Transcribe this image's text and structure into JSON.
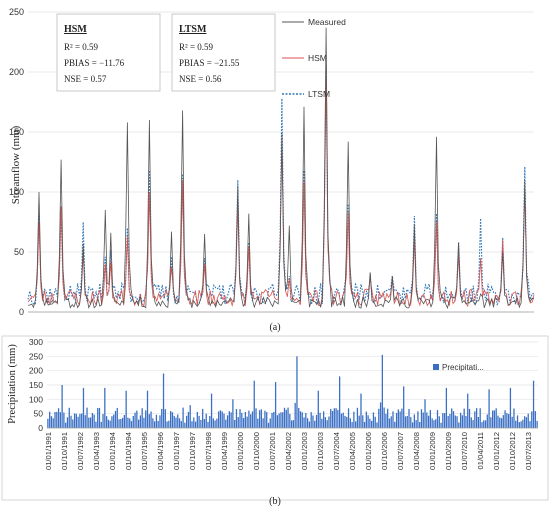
{
  "panel_a": {
    "label": "(a)",
    "stats_boxes": [
      {
        "title": "HSM",
        "lines": [
          "R² = 0.59",
          "PBIAS = −11.76",
          "NSE = 0.57"
        ]
      },
      {
        "title": "LTSM",
        "lines": [
          "R² = 0.59",
          "PBIAS = −21.55",
          "NSE = 0.56"
        ]
      }
    ],
    "colors": {
      "measured": "#555555",
      "hsm": "#d9534f",
      "ltsm": "#2e75b6"
    },
    "chart_data": {
      "type": "line",
      "ylabel": "Streamflow (mm)",
      "xlabel": "",
      "ylim": [
        0,
        250
      ],
      "yticks": [
        0,
        50,
        100,
        150,
        200,
        250
      ],
      "x_start": "1991-01",
      "x_step": "1 month",
      "n_points": 276,
      "legend": {
        "placement": "top-right",
        "entries": [
          "Measured",
          "HSM",
          "LTSM"
        ]
      },
      "series": [
        {
          "name": "Measured",
          "style": "solid",
          "peaks": [
            {
              "i": 6,
              "v": 100
            },
            {
              "i": 18,
              "v": 127
            },
            {
              "i": 30,
              "v": 57
            },
            {
              "i": 42,
              "v": 85
            },
            {
              "i": 45,
              "v": 66
            },
            {
              "i": 54,
              "v": 158
            },
            {
              "i": 66,
              "v": 160
            },
            {
              "i": 78,
              "v": 67
            },
            {
              "i": 84,
              "v": 168
            },
            {
              "i": 96,
              "v": 65
            },
            {
              "i": 114,
              "v": 105
            },
            {
              "i": 120,
              "v": 82
            },
            {
              "i": 138,
              "v": 149
            },
            {
              "i": 142,
              "v": 72
            },
            {
              "i": 150,
              "v": 171
            },
            {
              "i": 162,
              "v": 237
            },
            {
              "i": 174,
              "v": 142
            },
            {
              "i": 186,
              "v": 33
            },
            {
              "i": 198,
              "v": 30
            },
            {
              "i": 210,
              "v": 73
            },
            {
              "i": 222,
              "v": 146
            },
            {
              "i": 234,
              "v": 58
            },
            {
              "i": 246,
              "v": 15
            },
            {
              "i": 258,
              "v": 50
            },
            {
              "i": 270,
              "v": 110
            }
          ]
        },
        {
          "name": "HSM",
          "style": "solid",
          "peaks": [
            {
              "i": 6,
              "v": 75
            },
            {
              "i": 18,
              "v": 88
            },
            {
              "i": 30,
              "v": 50
            },
            {
              "i": 42,
              "v": 40
            },
            {
              "i": 45,
              "v": 42
            },
            {
              "i": 54,
              "v": 63
            },
            {
              "i": 66,
              "v": 100
            },
            {
              "i": 78,
              "v": 38
            },
            {
              "i": 84,
              "v": 110
            },
            {
              "i": 96,
              "v": 40
            },
            {
              "i": 114,
              "v": 88
            },
            {
              "i": 120,
              "v": 55
            },
            {
              "i": 138,
              "v": 145
            },
            {
              "i": 142,
              "v": 28
            },
            {
              "i": 150,
              "v": 108
            },
            {
              "i": 162,
              "v": 197
            },
            {
              "i": 174,
              "v": 83
            },
            {
              "i": 186,
              "v": 28
            },
            {
              "i": 198,
              "v": 26
            },
            {
              "i": 210,
              "v": 60
            },
            {
              "i": 222,
              "v": 75
            },
            {
              "i": 234,
              "v": 48
            },
            {
              "i": 246,
              "v": 45
            },
            {
              "i": 258,
              "v": 60
            },
            {
              "i": 270,
              "v": 102
            }
          ]
        },
        {
          "name": "LTSM",
          "style": "dotted",
          "peaks": [
            {
              "i": 6,
              "v": 82
            },
            {
              "i": 18,
              "v": 85
            },
            {
              "i": 30,
              "v": 75
            },
            {
              "i": 42,
              "v": 46
            },
            {
              "i": 45,
              "v": 52
            },
            {
              "i": 54,
              "v": 70
            },
            {
              "i": 66,
              "v": 118
            },
            {
              "i": 78,
              "v": 46
            },
            {
              "i": 84,
              "v": 115
            },
            {
              "i": 96,
              "v": 45
            },
            {
              "i": 114,
              "v": 110
            },
            {
              "i": 120,
              "v": 58
            },
            {
              "i": 138,
              "v": 178
            },
            {
              "i": 142,
              "v": 30
            },
            {
              "i": 150,
              "v": 118
            },
            {
              "i": 162,
              "v": 205
            },
            {
              "i": 174,
              "v": 90
            },
            {
              "i": 186,
              "v": 32
            },
            {
              "i": 198,
              "v": 30
            },
            {
              "i": 210,
              "v": 80
            },
            {
              "i": 222,
              "v": 82
            },
            {
              "i": 234,
              "v": 58
            },
            {
              "i": 246,
              "v": 78
            },
            {
              "i": 258,
              "v": 62
            },
            {
              "i": 270,
              "v": 121
            }
          ]
        }
      ]
    }
  },
  "panel_b": {
    "label": "(b)",
    "bar_color": "#3a6fc4",
    "chart_data": {
      "type": "bar",
      "ylabel": "Precipitation (mm)",
      "xlabel": "",
      "ylim": [
        0,
        300
      ],
      "yticks": [
        0,
        50,
        100,
        150,
        200,
        250,
        300
      ],
      "x_start": "1991-01",
      "x_step": "1 month",
      "n_points": 276,
      "legend": {
        "placement": "top-right",
        "entries": [
          "Precipitati..."
        ]
      },
      "categories": [
        "01/01/1991",
        "01/10/1991",
        "01/07/1992",
        "01/04/1993",
        "01/01/1994",
        "01/10/1994",
        "01/07/1995",
        "01/04/1996",
        "01/01/1997",
        "01/10/1997",
        "01/07/1998",
        "01/04/1999",
        "01/01/2000",
        "01/10/2000",
        "01/07/2001",
        "01/04/2002",
        "01/01/2003",
        "01/10/2003",
        "01/07/2004",
        "01/04/2005",
        "01/01/2006",
        "01/10/2006",
        "01/07/2007",
        "01/04/2008",
        "01/01/2009",
        "01/10/2009",
        "01/07/2010",
        "01/04/2011",
        "01/01/2012",
        "01/10/2012",
        "01/07/2013"
      ],
      "peaks": [
        {
          "i": 8,
          "v": 150
        },
        {
          "i": 20,
          "v": 140
        },
        {
          "i": 32,
          "v": 140
        },
        {
          "i": 44,
          "v": 130
        },
        {
          "i": 56,
          "v": 130
        },
        {
          "i": 65,
          "v": 190
        },
        {
          "i": 80,
          "v": 80
        },
        {
          "i": 92,
          "v": 120
        },
        {
          "i": 104,
          "v": 100
        },
        {
          "i": 116,
          "v": 165
        },
        {
          "i": 128,
          "v": 160
        },
        {
          "i": 140,
          "v": 250
        },
        {
          "i": 152,
          "v": 130
        },
        {
          "i": 164,
          "v": 180
        },
        {
          "i": 176,
          "v": 120
        },
        {
          "i": 188,
          "v": 255
        },
        {
          "i": 200,
          "v": 145
        },
        {
          "i": 212,
          "v": 100
        },
        {
          "i": 224,
          "v": 140
        },
        {
          "i": 236,
          "v": 120
        },
        {
          "i": 248,
          "v": 135
        },
        {
          "i": 260,
          "v": 140
        },
        {
          "i": 273,
          "v": 165
        }
      ]
    }
  }
}
